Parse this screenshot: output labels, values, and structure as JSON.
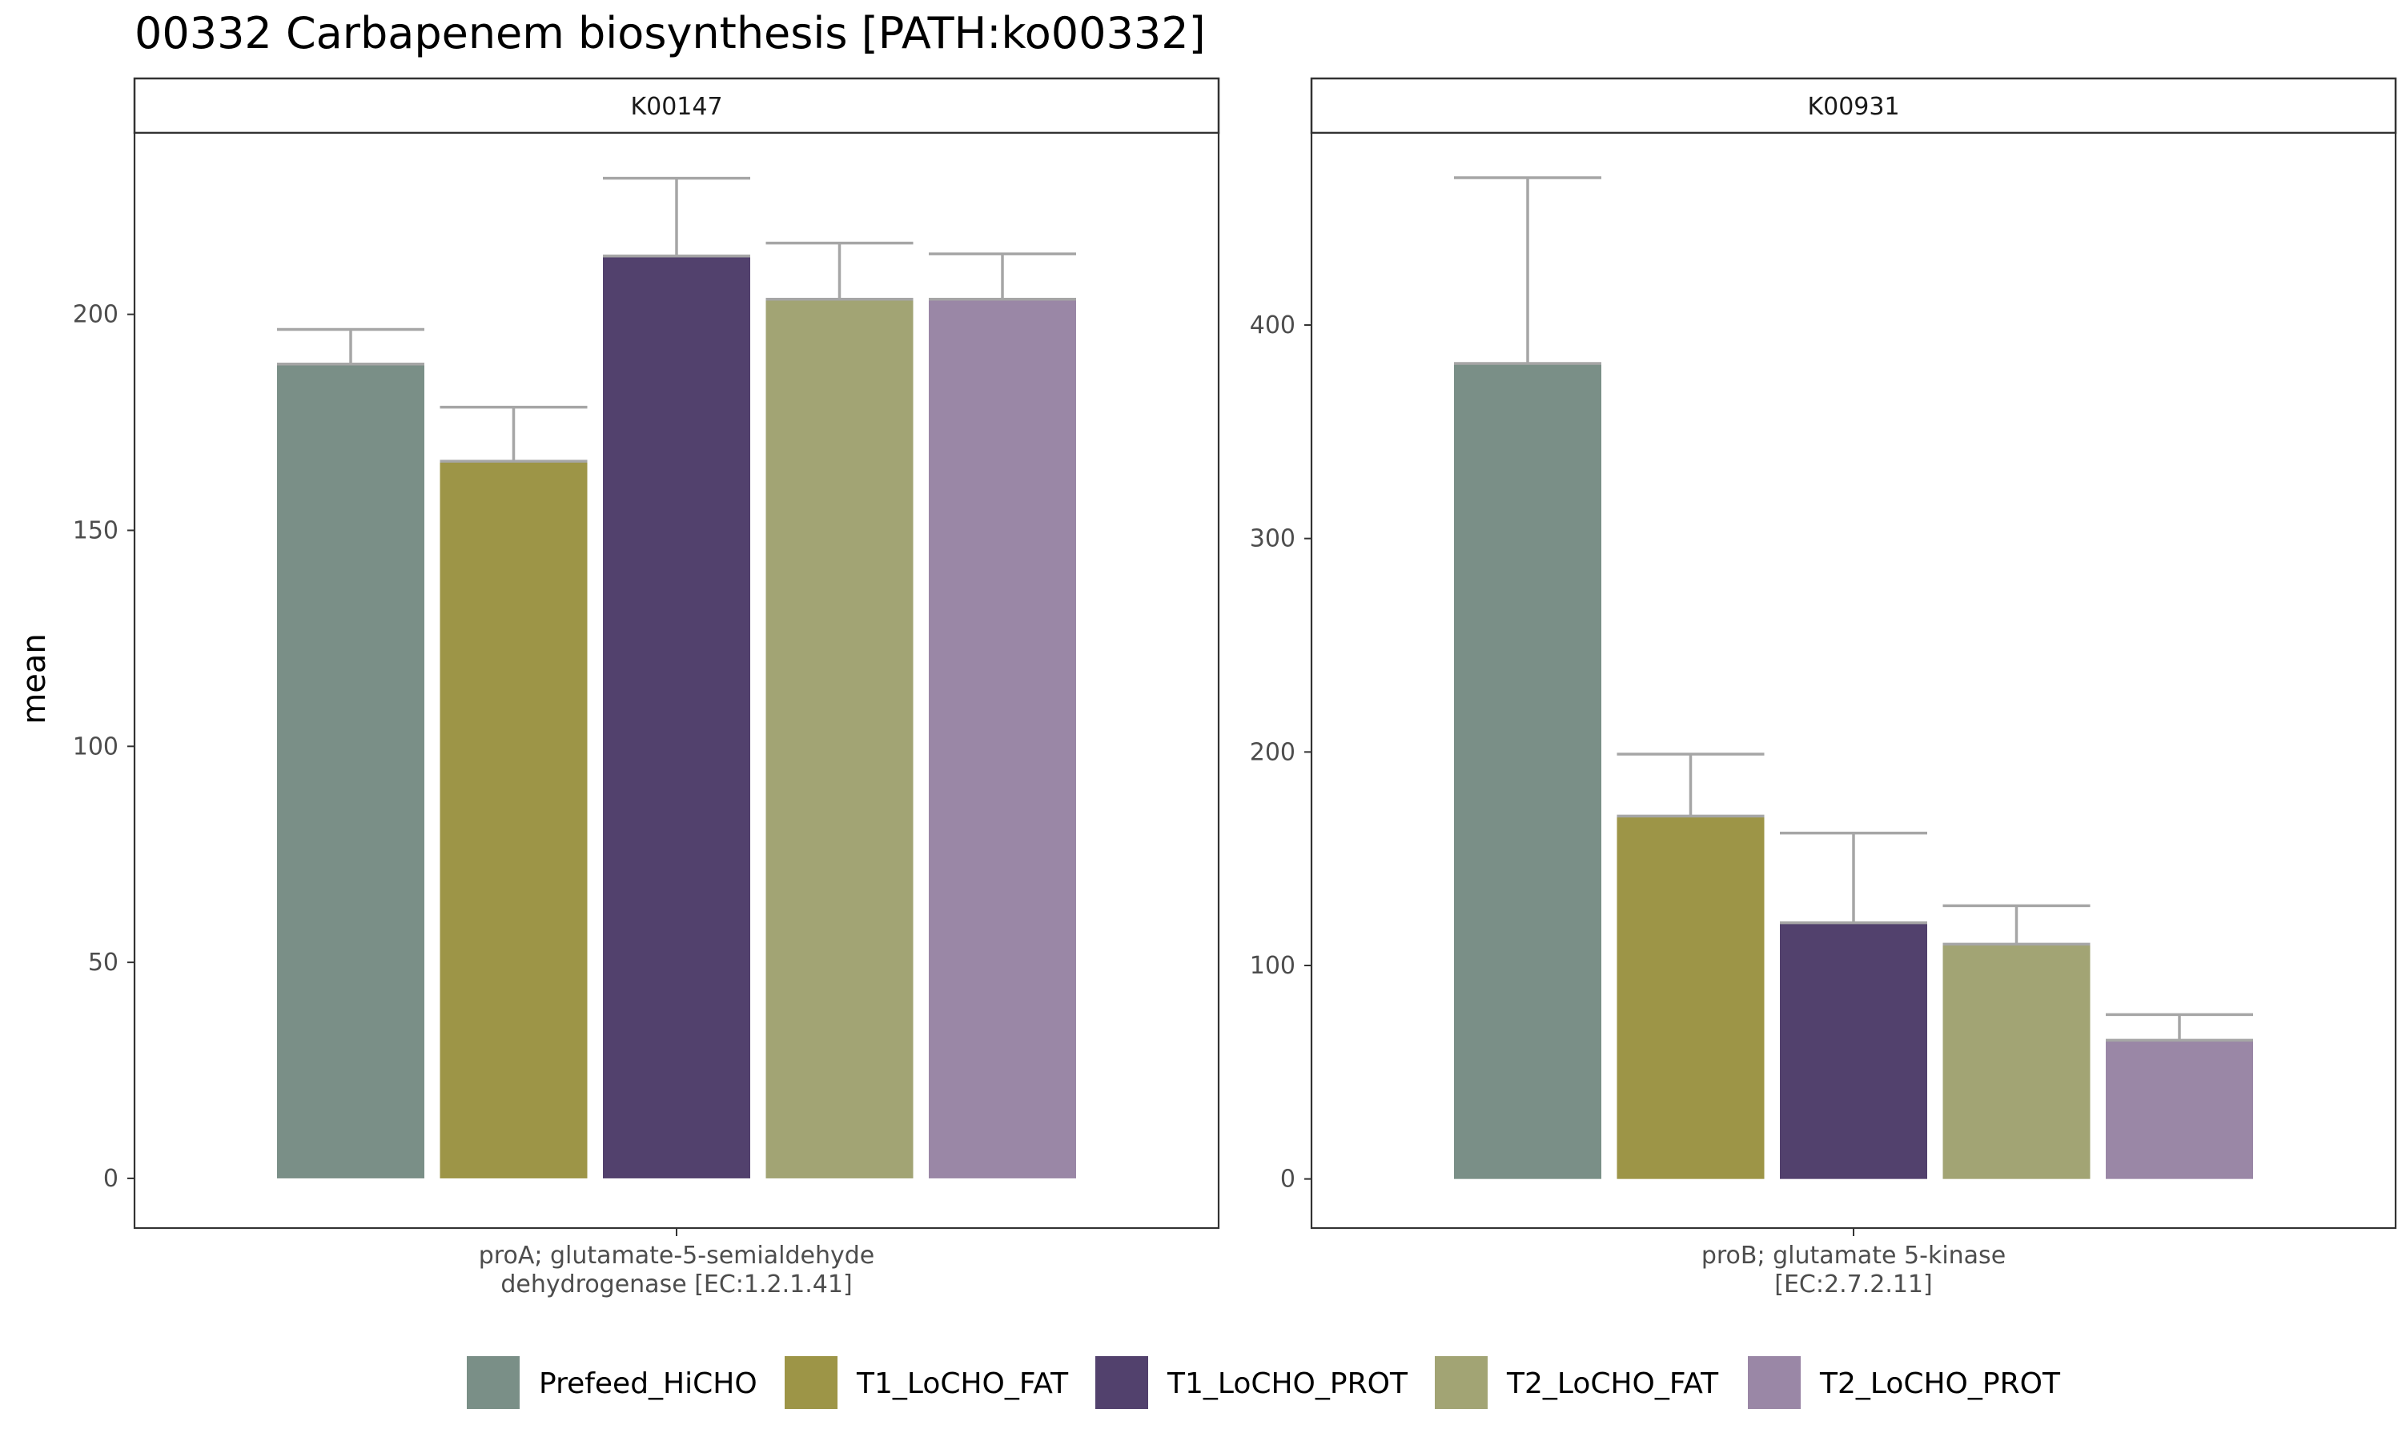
{
  "chart_data": {
    "type": "bar",
    "title": "00332 Carbapenem biosynthesis [PATH:ko00332]",
    "ylabel": "mean",
    "xlabel": "",
    "legend_position": "bottom",
    "grid": false,
    "categories": [
      "Prefeed_HiCHO",
      "T1_LoCHO_FAT",
      "T1_LoCHO_PROT",
      "T2_LoCHO_FAT",
      "T2_LoCHO_PROT"
    ],
    "colors": [
      "#7a8f87",
      "#9d9547",
      "#52416d",
      "#a2a474",
      "#9a87a6"
    ],
    "error_bar_color": "#a6a6a6",
    "panels": [
      {
        "strip_label": "K00147",
        "x_tick_lines": [
          "proA; glutamate-5-semialdehyde",
          "dehydrogenase [EC:1.2.1.41]"
        ],
        "ylim": [
          -11.5,
          242
        ],
        "y_ticks": [
          0,
          50,
          100,
          150,
          200
        ],
        "values": [
          188.5,
          166,
          213.5,
          203.5,
          203.5
        ],
        "error_upper": [
          196.5,
          178.5,
          231.5,
          216.5,
          214
        ]
      },
      {
        "strip_label": "K00931",
        "x_tick_lines": [
          "proB; glutamate 5-kinase",
          "[EC:2.7.2.11]"
        ],
        "ylim": [
          -23,
          490
        ],
        "y_ticks": [
          0,
          100,
          200,
          300,
          400
        ],
        "values": [
          382,
          170,
          120,
          110,
          65
        ],
        "error_upper": [
          469,
          199,
          162,
          128,
          77
        ]
      }
    ]
  }
}
